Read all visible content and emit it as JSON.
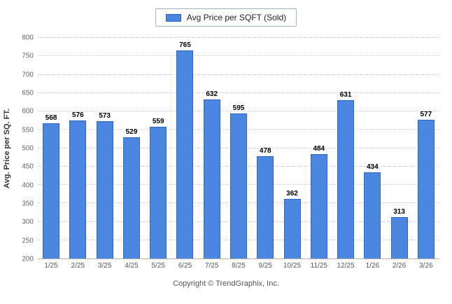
{
  "chart_data": {
    "type": "bar",
    "title": "",
    "legend": "Avg Price per SQFT (Sold)",
    "legend_position": "top-center",
    "categories": [
      "1/25",
      "2/25",
      "3/25",
      "4/25",
      "5/25",
      "6/25",
      "7/25",
      "8/25",
      "9/25",
      "10/25",
      "11/25",
      "12/25",
      "1/26",
      "2/26",
      "3/26"
    ],
    "values": [
      568,
      576,
      573,
      529,
      559,
      765,
      632,
      595,
      478,
      362,
      484,
      631,
      434,
      313,
      577
    ],
    "xlabel": "",
    "ylabel": "Avg. Price per SQ. FT.",
    "ylim": [
      200,
      800
    ],
    "yticks": [
      200,
      250,
      300,
      350,
      400,
      450,
      500,
      550,
      600,
      650,
      700,
      750,
      800
    ],
    "grid": "horizontal-dotted",
    "bar_color": "#4b86e0",
    "bar_border_color": "#2f66c4",
    "footer": "Copyright © TrendGraphix, Inc."
  }
}
